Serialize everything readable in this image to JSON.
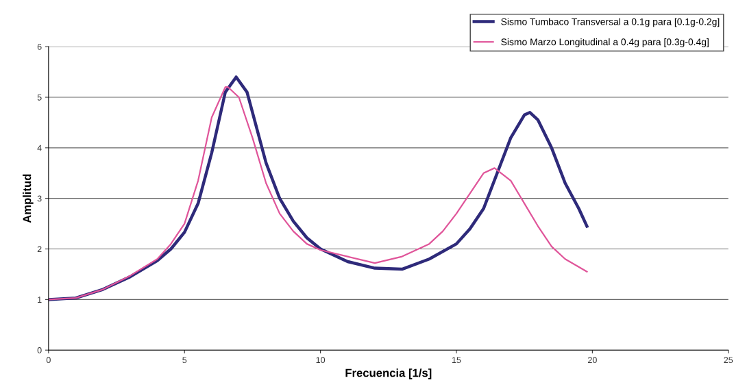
{
  "chart_data": {
    "type": "line",
    "xlabel": "Frecuencia [1/s]",
    "ylabel": "Amplitud",
    "xlim": [
      0,
      25
    ],
    "xticks": [
      0,
      5,
      10,
      15,
      20,
      25
    ],
    "ylim": [
      0,
      6
    ],
    "yticks": [
      0,
      1,
      2,
      3,
      4,
      5,
      6
    ],
    "grid": "y",
    "legend": "top right",
    "marker": "none",
    "line_style": "solid",
    "series": [
      {
        "name": "Sismo Tumbaco Transversal a 0.1g para [0.1g-0.2g]",
        "color": "#2e2a7a",
        "x": [
          0,
          1,
          2,
          3,
          4,
          4.5,
          5,
          5.5,
          6,
          6.5,
          6.9,
          7.3,
          7.5,
          8,
          8.5,
          9,
          9.5,
          10,
          11,
          12,
          13,
          14,
          15,
          15.5,
          16,
          16.5,
          17,
          17.5,
          17.7,
          18,
          18.5,
          19,
          19.5,
          19.8
        ],
        "values": [
          1,
          1.03,
          1.2,
          1.45,
          1.77,
          2.0,
          2.33,
          2.9,
          3.9,
          5.1,
          5.4,
          5.1,
          4.7,
          3.7,
          3.0,
          2.55,
          2.22,
          2.0,
          1.75,
          1.62,
          1.6,
          1.8,
          2.1,
          2.4,
          2.8,
          3.5,
          4.2,
          4.65,
          4.7,
          4.55,
          4.0,
          3.3,
          2.8,
          2.45
        ]
      },
      {
        "name": "Sismo Marzo Longitudinal a 0.4g para [0.3g-0.4g]",
        "color": "#e0559a",
        "x": [
          0,
          1,
          2,
          3,
          4,
          4.5,
          5,
          5.5,
          6,
          6.5,
          6.6,
          7,
          7.5,
          8,
          8.5,
          9,
          9.5,
          10,
          11,
          12,
          13,
          14,
          14.5,
          15,
          15.5,
          16,
          16.4,
          17,
          17.5,
          18,
          18.5,
          19,
          19.8
        ],
        "values": [
          1,
          1.03,
          1.2,
          1.47,
          1.8,
          2.1,
          2.5,
          3.35,
          4.6,
          5.2,
          5.2,
          5.0,
          4.2,
          3.3,
          2.7,
          2.35,
          2.1,
          1.98,
          1.85,
          1.72,
          1.85,
          2.1,
          2.35,
          2.7,
          3.1,
          3.5,
          3.6,
          3.35,
          2.9,
          2.45,
          2.05,
          1.8,
          1.55
        ]
      }
    ]
  }
}
